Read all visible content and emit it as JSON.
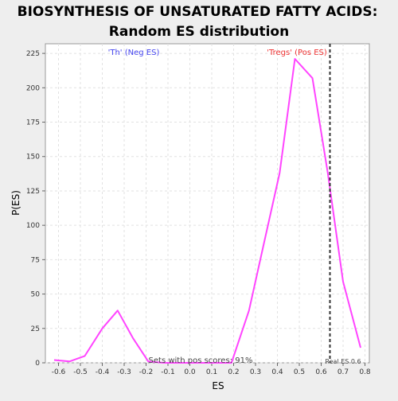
{
  "chart_data": {
    "type": "line",
    "title_line1": "BIOSYNTHESIS OF UNSATURATED FATTY ACIDS:",
    "title_line2": "Random ES distribution",
    "xlabel": "ES",
    "ylabel": "P(ES)",
    "xlim": [
      -0.66,
      0.82
    ],
    "ylim": [
      0,
      232
    ],
    "xticks": [
      -0.6,
      -0.5,
      -0.4,
      -0.3,
      -0.2,
      -0.1,
      0.0,
      0.1,
      0.2,
      0.3,
      0.4,
      0.5,
      0.6,
      0.7,
      0.8
    ],
    "xtick_labels": [
      "-0.6",
      "-0.5",
      "-0.4",
      "-0.3",
      "-0.2",
      "-0.1",
      "0.0",
      "0.1",
      "0.2",
      "0.3",
      "0.4",
      "0.5",
      "0.6",
      "0.7",
      "0.8"
    ],
    "yticks": [
      0,
      25,
      50,
      75,
      100,
      125,
      150,
      175,
      200,
      225
    ],
    "ytick_labels": [
      "0",
      "25",
      "50",
      "75",
      "100",
      "125",
      "150",
      "175",
      "200",
      "225"
    ],
    "grid": true,
    "series": [
      {
        "color": "#ff44ff",
        "x": [
          -0.62,
          -0.55,
          -0.48,
          -0.4,
          -0.33,
          -0.26,
          -0.19,
          -0.12,
          -0.05,
          0.02,
          0.12,
          0.19,
          0.27,
          0.34,
          0.41,
          0.48,
          0.56,
          0.63,
          0.7,
          0.78
        ],
        "y": [
          2,
          1,
          5,
          25,
          38,
          18,
          1,
          0,
          0,
          0,
          0,
          0,
          38,
          88,
          138,
          221,
          207,
          138,
          59,
          11
        ]
      }
    ],
    "real_es": {
      "x": 0.64,
      "label": "Real ES 0.6",
      "color": "#333333"
    },
    "annotations": {
      "neg_label": "'Th' (Neg ES)",
      "neg_color": "#4444ee",
      "pos_label": "'Tregs' (Pos ES)",
      "pos_color": "#ee3333",
      "sets_label": "Sets with pos scores: 91%"
    }
  }
}
